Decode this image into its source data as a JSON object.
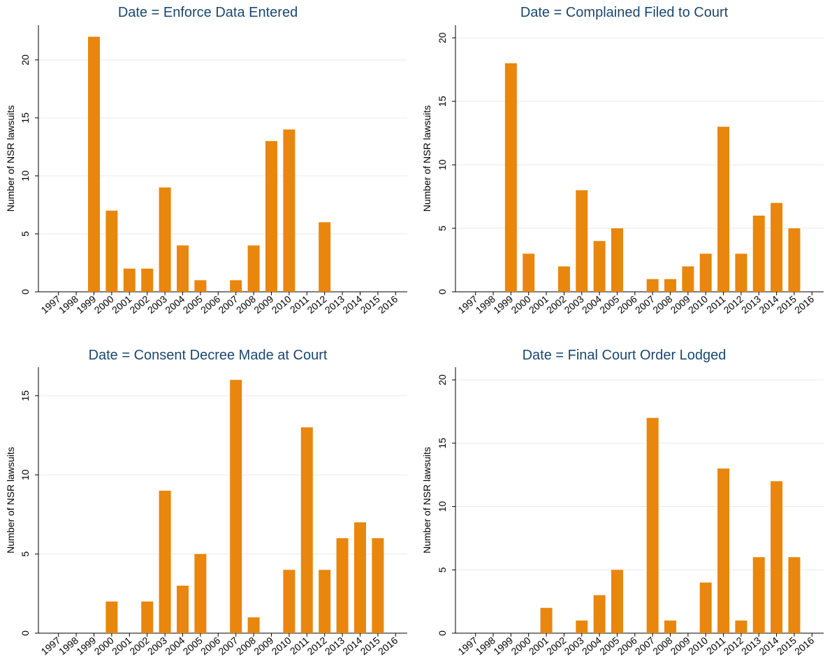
{
  "colors": {
    "bar": "#e8860e",
    "title": "#1a476f",
    "grid": "#eaeaea",
    "axis": "#000000"
  },
  "chart_data": [
    {
      "type": "bar",
      "title": "Date = Enforce Data Entered",
      "ylabel": "Number of NSR lawsuits",
      "xlabel": "",
      "categories": [
        "1997",
        "1998",
        "1999",
        "2000",
        "2001",
        "2002",
        "2003",
        "2004",
        "2005",
        "2006",
        "2007",
        "2008",
        "2009",
        "2010",
        "2011",
        "2012",
        "2013",
        "2014",
        "2015",
        "2016"
      ],
      "values": [
        0,
        0,
        22,
        7,
        2,
        2,
        9,
        4,
        1,
        0,
        1,
        4,
        13,
        14,
        0,
        6,
        0,
        0,
        0,
        0
      ],
      "ylim": [
        0,
        23
      ],
      "yticks": [
        0,
        5,
        10,
        15,
        20
      ],
      "grid": true
    },
    {
      "type": "bar",
      "title": "Date = Complained Filed to Court",
      "ylabel": "Number of NSR lawsuits",
      "xlabel": "",
      "categories": [
        "1997",
        "1998",
        "1999",
        "2000",
        "2001",
        "2002",
        "2003",
        "2004",
        "2005",
        "2006",
        "2007",
        "2008",
        "2009",
        "2010",
        "2011",
        "2012",
        "2013",
        "2014",
        "2015",
        "2016"
      ],
      "values": [
        0,
        0,
        18,
        3,
        0,
        2,
        8,
        4,
        5,
        0,
        1,
        1,
        2,
        3,
        13,
        3,
        6,
        7,
        5,
        0
      ],
      "ylim": [
        0,
        21
      ],
      "yticks": [
        0,
        5,
        10,
        15,
        20
      ],
      "grid": true
    },
    {
      "type": "bar",
      "title": "Date = Consent Decree Made at Court",
      "ylabel": "Number of NSR lawsuits",
      "xlabel": "",
      "categories": [
        "1997",
        "1998",
        "1999",
        "2000",
        "2001",
        "2002",
        "2003",
        "2004",
        "2005",
        "2006",
        "2007",
        "2008",
        "2009",
        "2010",
        "2011",
        "2012",
        "2013",
        "2014",
        "2015",
        "2016"
      ],
      "values": [
        0,
        0,
        0,
        2,
        0,
        2,
        9,
        3,
        5,
        0,
        16,
        1,
        0,
        4,
        13,
        4,
        6,
        7,
        6,
        0
      ],
      "ylim": [
        0,
        16.8
      ],
      "yticks": [
        0,
        5,
        10,
        15
      ],
      "grid": true
    },
    {
      "type": "bar",
      "title": "Date = Final Court Order Lodged",
      "ylabel": "Number of NSR lawsuits",
      "xlabel": "",
      "categories": [
        "1997",
        "1998",
        "1999",
        "2000",
        "2001",
        "2002",
        "2003",
        "2004",
        "2005",
        "2006",
        "2007",
        "2008",
        "2009",
        "2010",
        "2011",
        "2012",
        "2013",
        "2014",
        "2015",
        "2016"
      ],
      "values": [
        0,
        0,
        0,
        0,
        2,
        0,
        1,
        3,
        5,
        0,
        17,
        1,
        0,
        4,
        13,
        1,
        6,
        12,
        6,
        0
      ],
      "ylim": [
        0,
        21
      ],
      "yticks": [
        0,
        5,
        10,
        15,
        20
      ],
      "grid": true
    }
  ]
}
